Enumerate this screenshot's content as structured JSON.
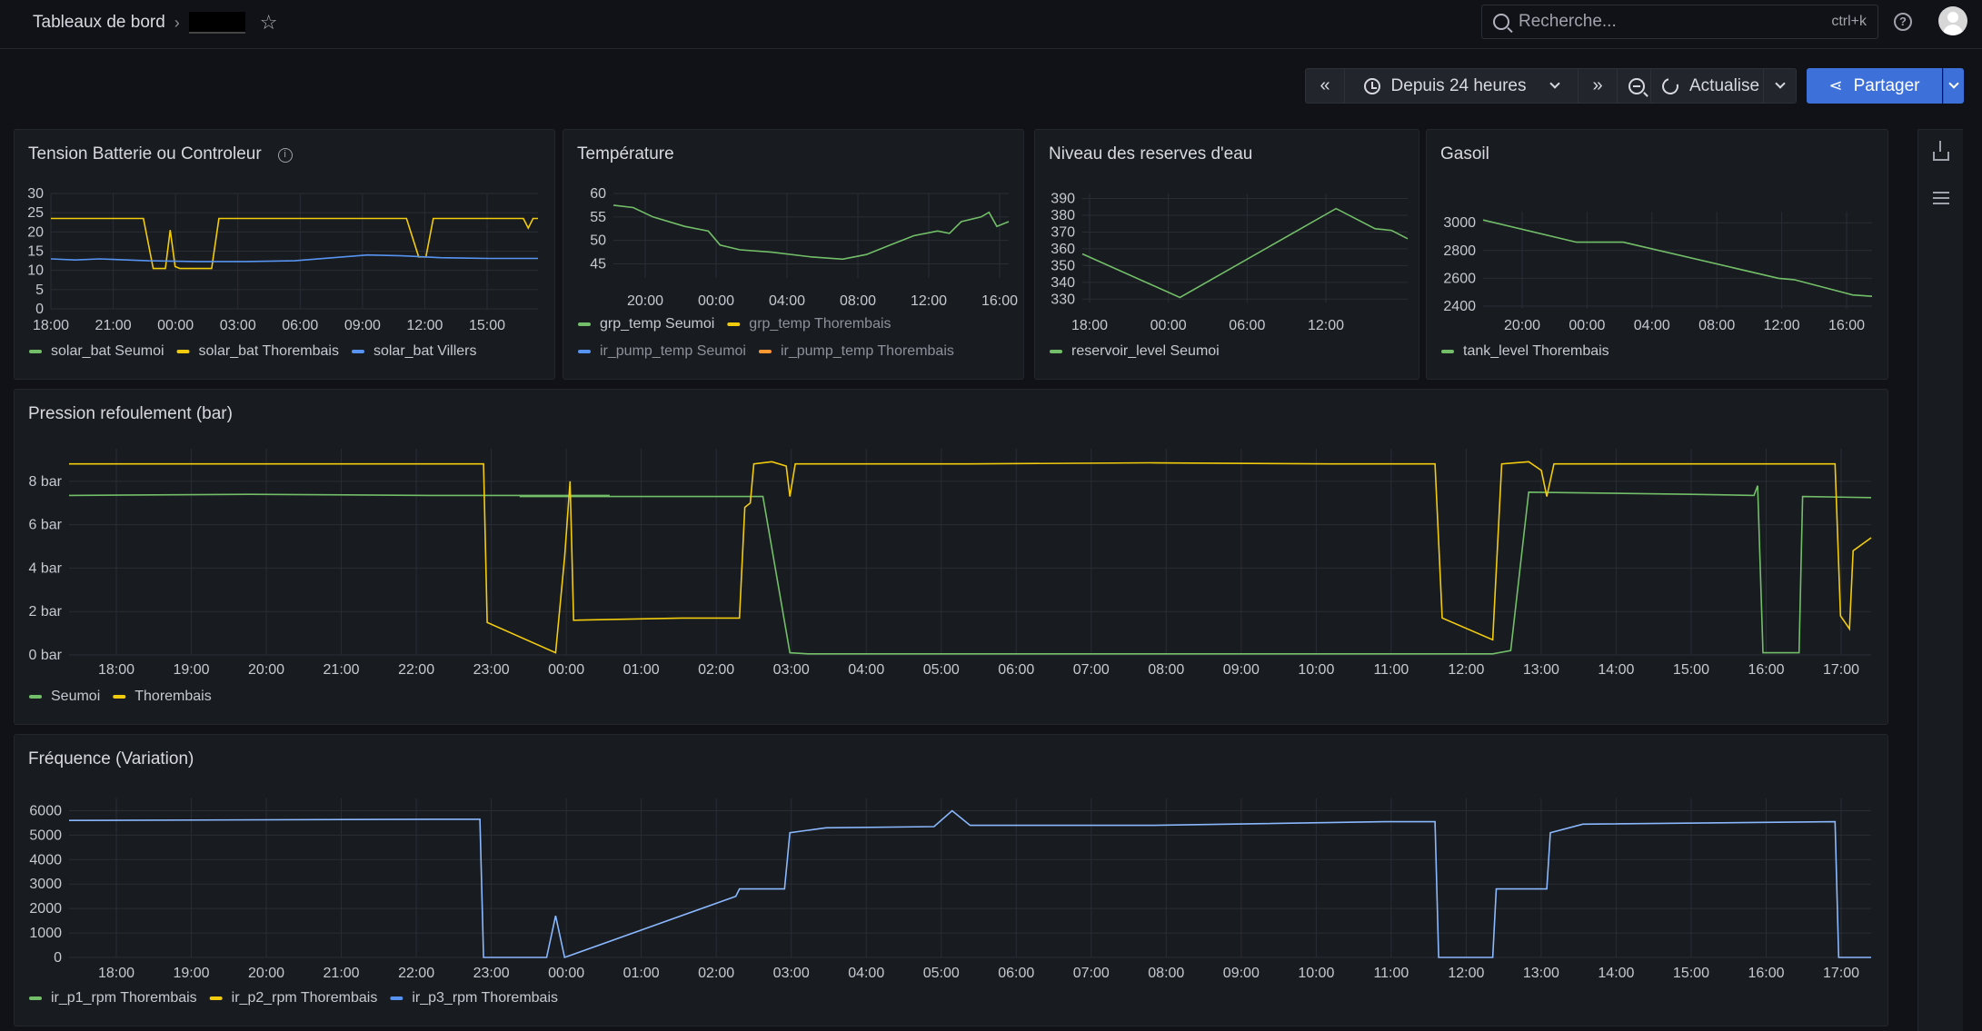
{
  "header": {
    "breadcrumb_root": "Tableaux de bord",
    "search_placeholder": "Recherche...",
    "search_shortcut": "ctrl+k"
  },
  "toolbar": {
    "time_range": "Depuis 24 heures",
    "refresh_label": "Actualise",
    "share_label": "Partager"
  },
  "colors": {
    "green": "#73bf69",
    "yellow": "#f2cc0c",
    "blue": "#5794f2",
    "orange": "#ff9830",
    "lightblue": "#8ab8ff"
  },
  "panels": {
    "tension": {
      "title": "Tension Batterie ou Controleur",
      "legend": [
        "solar_bat Seumoi",
        "solar_bat Thorembais",
        "solar_bat Villers"
      ]
    },
    "temperature": {
      "title": "Température",
      "legend": [
        "grp_temp Seumoi",
        "grp_temp Thorembais",
        "ir_pump_temp Seumoi",
        "ir_pump_temp Thorembais"
      ]
    },
    "niveau": {
      "title": "Niveau des reserves d'eau",
      "legend": [
        "reservoir_level Seumoi"
      ]
    },
    "gasoil": {
      "title": "Gasoil",
      "legend": [
        "tank_level Thorembais"
      ]
    },
    "pression": {
      "title": "Pression refoulement (bar)",
      "legend": [
        "Seumoi",
        "Thorembais"
      ]
    },
    "frequence": {
      "title": "Fréquence (Variation)",
      "legend": [
        "ir_p1_rpm Thorembais",
        "ir_p2_rpm Thorembais",
        "ir_p3_rpm Thorembais"
      ]
    }
  },
  "chart_data": [
    {
      "type": "line",
      "id": "tension",
      "title": "Tension Batterie ou Controleur",
      "x_ticks": [
        "18:00",
        "21:00",
        "00:00",
        "03:00",
        "06:00",
        "09:00",
        "12:00",
        "15:00"
      ],
      "y_ticks": [
        "0",
        "5",
        "10",
        "15",
        "20",
        "25",
        "30"
      ],
      "ylim": [
        0,
        30
      ],
      "series": [
        {
          "name": "solar_bat Thorembais",
          "color": "#f2cc0c",
          "points": [
            [
              0,
              23.5
            ],
            [
              0.19,
              23.5
            ],
            [
              0.21,
              10.5
            ],
            [
              0.235,
              10.5
            ],
            [
              0.245,
              20.5
            ],
            [
              0.255,
              11
            ],
            [
              0.265,
              10.5
            ],
            [
              0.33,
              10.5
            ],
            [
              0.345,
              23.5
            ],
            [
              0.73,
              23.5
            ],
            [
              0.755,
              13.5
            ],
            [
              0.77,
              13.5
            ],
            [
              0.785,
              23.5
            ],
            [
              0.97,
              23.5
            ],
            [
              0.98,
              21
            ],
            [
              0.99,
              23.5
            ],
            [
              1,
              23.5
            ]
          ]
        },
        {
          "name": "solar_bat Villers",
          "color": "#5794f2",
          "points": [
            [
              0,
              13
            ],
            [
              0.05,
              12.7
            ],
            [
              0.1,
              13
            ],
            [
              0.2,
              12.5
            ],
            [
              0.3,
              12.3
            ],
            [
              0.4,
              12.3
            ],
            [
              0.5,
              12.5
            ],
            [
              0.6,
              13.5
            ],
            [
              0.65,
              14
            ],
            [
              0.72,
              13.8
            ],
            [
              0.8,
              13.3
            ],
            [
              0.9,
              13.1
            ],
            [
              1,
              13.1
            ]
          ]
        }
      ]
    },
    {
      "type": "line",
      "id": "temperature",
      "title": "Température",
      "x_ticks": [
        "20:00",
        "00:00",
        "04:00",
        "08:00",
        "12:00",
        "16:00"
      ],
      "y_ticks": [
        "45",
        "50",
        "55",
        "60"
      ],
      "ylim": [
        42,
        60
      ],
      "series": [
        {
          "name": "grp_temp Seumoi",
          "color": "#73bf69",
          "points": [
            [
              0,
              57.5
            ],
            [
              0.05,
              57
            ],
            [
              0.1,
              55
            ],
            [
              0.18,
              53
            ],
            [
              0.24,
              52
            ],
            [
              0.27,
              49
            ],
            [
              0.32,
              48
            ],
            [
              0.4,
              47.5
            ],
            [
              0.5,
              46.5
            ],
            [
              0.58,
              46
            ],
            [
              0.64,
              47
            ],
            [
              0.7,
              49
            ],
            [
              0.76,
              51
            ],
            [
              0.82,
              52
            ],
            [
              0.85,
              51.5
            ],
            [
              0.88,
              54
            ],
            [
              0.93,
              55
            ],
            [
              0.95,
              56
            ],
            [
              0.97,
              53
            ],
            [
              1,
              54
            ]
          ]
        }
      ]
    },
    {
      "type": "line",
      "id": "niveau",
      "title": "Niveau des reserves d'eau",
      "x_ticks": [
        "18:00",
        "00:00",
        "06:00",
        "12:00"
      ],
      "y_ticks": [
        "330",
        "340",
        "350",
        "360",
        "370",
        "380",
        "390"
      ],
      "ylim": [
        328,
        393
      ],
      "series": [
        {
          "name": "reservoir_level Seumoi",
          "color": "#73bf69",
          "points": [
            [
              0,
              357
            ],
            [
              0.3,
              331
            ],
            [
              0.78,
              384
            ],
            [
              0.9,
              372
            ],
            [
              0.95,
              371
            ],
            [
              1,
              366
            ]
          ]
        }
      ]
    },
    {
      "type": "line",
      "id": "gasoil",
      "title": "Gasoil",
      "x_ticks": [
        "20:00",
        "00:00",
        "04:00",
        "08:00",
        "12:00",
        "16:00"
      ],
      "y_ticks": [
        "2400",
        "2600",
        "2800",
        "3000"
      ],
      "ylim": [
        2380,
        3080
      ],
      "series": [
        {
          "name": "tank_level Thorembais",
          "color": "#73bf69",
          "points": [
            [
              0,
              3020
            ],
            [
              0.24,
              2860
            ],
            [
              0.36,
              2860
            ],
            [
              0.76,
              2600
            ],
            [
              0.8,
              2590
            ],
            [
              0.95,
              2480
            ],
            [
              1,
              2470
            ]
          ]
        }
      ]
    },
    {
      "type": "line",
      "id": "pression",
      "title": "Pression refoulement (bar)",
      "x_ticks": [
        "18:00",
        "19:00",
        "20:00",
        "21:00",
        "22:00",
        "23:00",
        "00:00",
        "01:00",
        "02:00",
        "03:00",
        "04:00",
        "05:00",
        "06:00",
        "07:00",
        "08:00",
        "09:00",
        "10:00",
        "11:00",
        "12:00",
        "13:00",
        "14:00",
        "15:00",
        "16:00",
        "17:00"
      ],
      "y_ticks": [
        "0 bar",
        "2 bar",
        "4 bar",
        "6 bar",
        "8 bar"
      ],
      "ylim": [
        0,
        9.5
      ],
      "series": [
        {
          "name": "Seumoi",
          "color": "#73bf69",
          "points": [
            [
              0,
              7.35
            ],
            [
              0.1,
              7.4
            ],
            [
              0.2,
              7.35
            ],
            [
              0.3,
              7.35
            ],
            [
              0.25,
              7.3
            ],
            [
              0.38,
              7.3
            ],
            [
              0.385,
              7.3
            ],
            [
              0.4,
              0.1
            ],
            [
              0.41,
              0.05
            ],
            [
              0.79,
              0.05
            ],
            [
              0.8,
              0.2
            ],
            [
              0.81,
              7.5
            ],
            [
              0.9,
              7.4
            ],
            [
              0.935,
              7.35
            ],
            [
              0.937,
              7.8
            ],
            [
              0.94,
              0.1
            ],
            [
              0.96,
              0.1
            ],
            [
              0.962,
              7.3
            ],
            [
              1,
              7.25
            ]
          ]
        },
        {
          "name": "Thorembais",
          "color": "#f2cc0c",
          "points": [
            [
              0,
              8.8
            ],
            [
              0.23,
              8.8
            ],
            [
              0.232,
              1.5
            ],
            [
              0.27,
              0.1
            ],
            [
              0.275,
              4.5
            ],
            [
              0.278,
              8
            ],
            [
              0.28,
              1.6
            ],
            [
              0.34,
              1.7
            ],
            [
              0.372,
              1.7
            ],
            [
              0.375,
              6.8
            ],
            [
              0.378,
              7
            ],
            [
              0.38,
              8.8
            ],
            [
              0.39,
              8.9
            ],
            [
              0.398,
              8.7
            ],
            [
              0.4,
              7.3
            ],
            [
              0.403,
              8.8
            ],
            [
              0.5,
              8.8
            ],
            [
              0.6,
              8.85
            ],
            [
              0.7,
              8.8
            ],
            [
              0.758,
              8.8
            ],
            [
              0.762,
              1.7
            ],
            [
              0.79,
              0.7
            ],
            [
              0.795,
              8.8
            ],
            [
              0.81,
              8.9
            ],
            [
              0.817,
              8.5
            ],
            [
              0.82,
              7.3
            ],
            [
              0.824,
              8.8
            ],
            [
              0.98,
              8.8
            ],
            [
              0.983,
              1.8
            ],
            [
              0.988,
              1.2
            ],
            [
              0.99,
              4.8
            ],
            [
              1,
              5.4
            ]
          ]
        }
      ]
    },
    {
      "type": "line",
      "id": "frequence",
      "title": "Fréquence (Variation)",
      "x_ticks": [
        "18:00",
        "19:00",
        "20:00",
        "21:00",
        "22:00",
        "23:00",
        "00:00",
        "01:00",
        "02:00",
        "03:00",
        "04:00",
        "05:00",
        "06:00",
        "07:00",
        "08:00",
        "09:00",
        "10:00",
        "11:00",
        "12:00",
        "13:00",
        "14:00",
        "15:00",
        "16:00",
        "17:00"
      ],
      "y_ticks": [
        "0",
        "1000",
        "2000",
        "3000",
        "4000",
        "5000",
        "6000"
      ],
      "ylim": [
        0,
        6500
      ],
      "series": [
        {
          "name": "ir_p3_rpm Thorembais",
          "color": "#8ab8ff",
          "points": [
            [
              0,
              5600
            ],
            [
              0.2,
              5650
            ],
            [
              0.228,
              5650
            ],
            [
              0.23,
              0
            ],
            [
              0.265,
              0
            ],
            [
              0.27,
              1700
            ],
            [
              0.275,
              0
            ],
            [
              0.37,
              2500
            ],
            [
              0.372,
              2800
            ],
            [
              0.397,
              2800
            ],
            [
              0.4,
              5100
            ],
            [
              0.42,
              5300
            ],
            [
              0.48,
              5350
            ],
            [
              0.49,
              6000
            ],
            [
              0.5,
              5400
            ],
            [
              0.6,
              5400
            ],
            [
              0.73,
              5550
            ],
            [
              0.758,
              5550
            ],
            [
              0.76,
              0
            ],
            [
              0.79,
              0
            ],
            [
              0.792,
              2800
            ],
            [
              0.82,
              2800
            ],
            [
              0.822,
              5100
            ],
            [
              0.84,
              5450
            ],
            [
              0.98,
              5550
            ],
            [
              0.982,
              0
            ],
            [
              1,
              0
            ]
          ]
        }
      ]
    }
  ]
}
